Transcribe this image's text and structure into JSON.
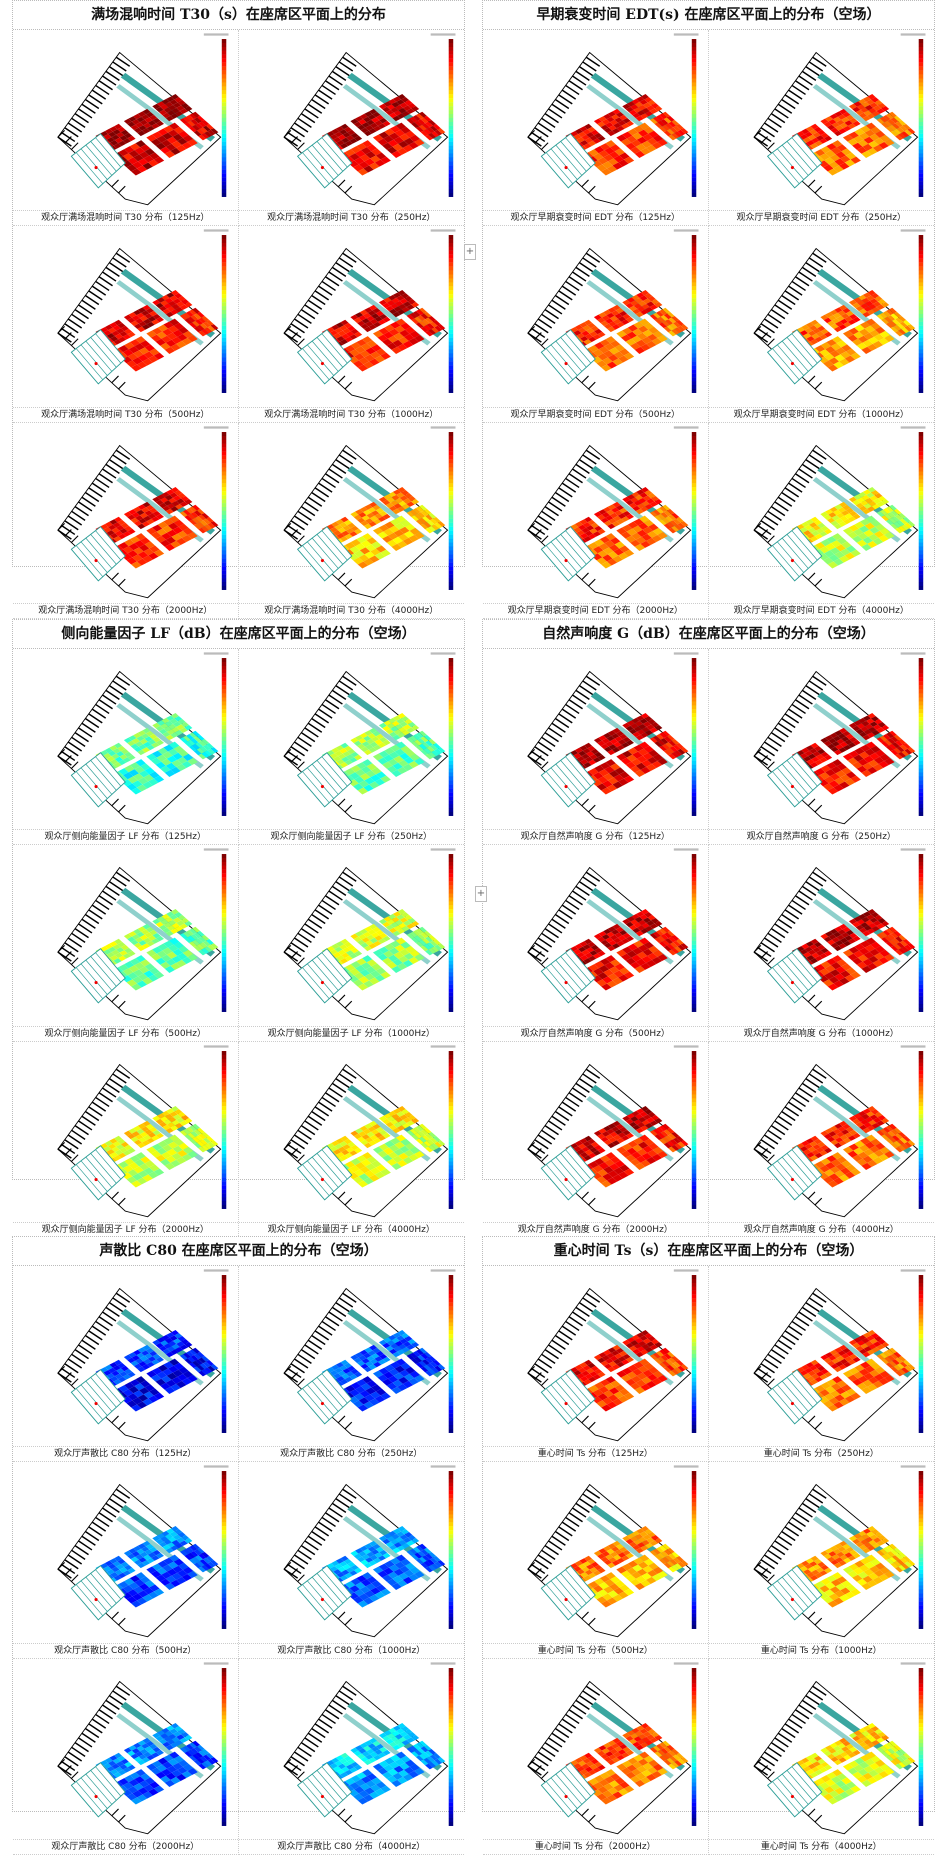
{
  "sections": [
    {
      "left": {
        "title": "满场混响时间 T30（s）在座席区平面上的分布",
        "charts": [
          {
            "caption": "观众厅满场混响时间 T30 分布（125Hz）",
            "level": 0.95
          },
          {
            "caption": "观众厅满场混响时间 T30 分布（250Hz）",
            "level": 0.92
          },
          {
            "caption": "观众厅满场混响时间 T30 分布（500Hz）",
            "level": 0.88
          },
          {
            "caption": "观众厅满场混响时间 T30 分布（1000Hz）",
            "level": 0.88
          },
          {
            "caption": "观众厅满场混响时间 T30 分布（2000Hz）",
            "level": 0.86
          },
          {
            "caption": "观众厅满场混响时间 T30 分布（4000Hz）",
            "level": 0.7
          }
        ]
      },
      "right": {
        "title": "早期衰变时间 EDT(s) 在座席区平面上的分布（空场）",
        "charts": [
          {
            "caption": "观众厅早期衰变时间 EDT 分布（125Hz）",
            "level": 0.85
          },
          {
            "caption": "观众厅早期衰变时间 EDT 分布（250Hz）",
            "level": 0.8
          },
          {
            "caption": "观众厅早期衰变时间 EDT 分布（500Hz）",
            "level": 0.8
          },
          {
            "caption": "观众厅早期衰变时间 EDT 分布（1000Hz）",
            "level": 0.75
          },
          {
            "caption": "观众厅早期衰变时间 EDT 分布（2000Hz）",
            "level": 0.8
          },
          {
            "caption": "观众厅早期衰变时间 EDT 分布（4000Hz）",
            "level": 0.6
          }
        ]
      }
    },
    {
      "left": {
        "title": "侧向能量因子 LF（dB）在座席区平面上的分布（空场）",
        "charts": [
          {
            "caption": "观众厅侧向能量因子 LF 分布（125Hz）",
            "level": 0.45
          },
          {
            "caption": "观众厅侧向能量因子 LF 分布（250Hz）",
            "level": 0.5
          },
          {
            "caption": "观众厅侧向能量因子 LF 分布（500Hz）",
            "level": 0.5
          },
          {
            "caption": "观众厅侧向能量因子 LF 分布（1000Hz）",
            "level": 0.55
          },
          {
            "caption": "观众厅侧向能量因子 LF 分布（2000Hz）",
            "level": 0.6
          },
          {
            "caption": "观众厅侧向能量因子 LF 分布（4000Hz）",
            "level": 0.6
          }
        ]
      },
      "right": {
        "title": "自然声响度 G（dB）在座席区平面上的分布（空场）",
        "charts": [
          {
            "caption": "观众厅自然声响度 G 分布（125Hz）",
            "level": 0.92
          },
          {
            "caption": "观众厅自然声响度 G 分布（250Hz）",
            "level": 0.9
          },
          {
            "caption": "观众厅自然声响度 G 分布（500Hz）",
            "level": 0.9
          },
          {
            "caption": "观众厅自然声响度 G 分布（1000Hz）",
            "level": 0.9
          },
          {
            "caption": "观众厅自然声响度 G 分布（2000Hz）",
            "level": 0.88
          },
          {
            "caption": "观众厅自然声响度 G 分布（4000Hz）",
            "level": 0.8
          }
        ]
      }
    },
    {
      "left": {
        "title": "声散比 C80 在座席区平面上的分布（空场）",
        "charts": [
          {
            "caption": "观众厅声散比 C80 分布（125Hz）",
            "level": 0.15
          },
          {
            "caption": "观众厅声散比 C80 分布（250Hz）",
            "level": 0.18
          },
          {
            "caption": "观众厅声散比 C80 分布（500Hz）",
            "level": 0.22
          },
          {
            "caption": "观众厅声散比 C80 分布（1000Hz）",
            "level": 0.25
          },
          {
            "caption": "观众厅声散比 C80 分布（2000Hz）",
            "level": 0.22
          },
          {
            "caption": "观众厅声散比 C80 分布（4000Hz）",
            "level": 0.3
          }
        ]
      },
      "right": {
        "title": "重心时间 Ts（s）在座席区平面上的分布（空场）",
        "charts": [
          {
            "caption": "重心时间 Ts 分布（125Hz）",
            "level": 0.85
          },
          {
            "caption": "重心时间 Ts 分布（250Hz）",
            "level": 0.8
          },
          {
            "caption": "重心时间 Ts 分布（500Hz）",
            "level": 0.72
          },
          {
            "caption": "重心时间 Ts 分布（1000Hz）",
            "level": 0.7
          },
          {
            "caption": "重心时间 Ts 分布（2000Hz）",
            "level": 0.78
          },
          {
            "caption": "重心时间 Ts 分布（4000Hz）",
            "level": 0.62
          }
        ]
      }
    }
  ],
  "expand_label": "+"
}
